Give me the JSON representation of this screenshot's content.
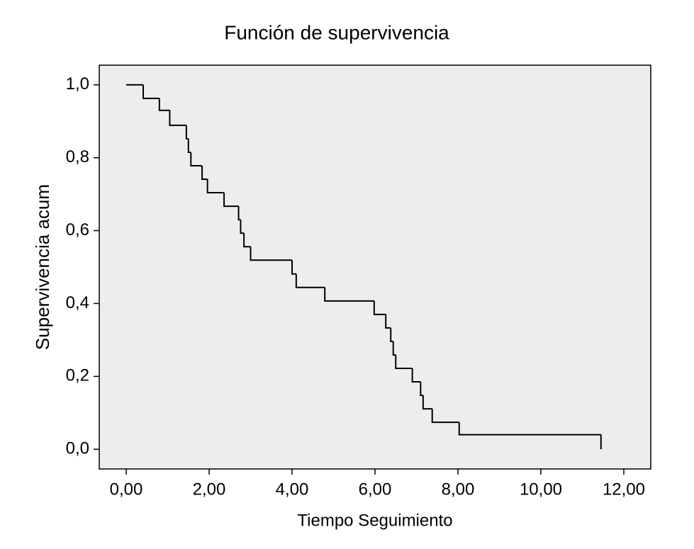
{
  "chart_data": {
    "type": "line",
    "drawstyle": "steps-post",
    "title": "Función de supervivencia",
    "x_label": "Tiempo Seguimiento",
    "y_label": "Supervivencia acum",
    "x": [
      0,
      0.41,
      0.8,
      1.05,
      1.45,
      1.5,
      1.56,
      1.83,
      1.96,
      2.36,
      2.71,
      2.76,
      2.84,
      3.0,
      4.0,
      4.1,
      4.79,
      5.98,
      6.26,
      6.38,
      6.44,
      6.5,
      6.9,
      7.1,
      7.16,
      7.38,
      8.03,
      11.45
    ],
    "values": [
      1.0,
      0.963,
      0.93,
      0.889,
      0.852,
      0.815,
      0.778,
      0.741,
      0.704,
      0.667,
      0.63,
      0.593,
      0.556,
      0.519,
      0.481,
      0.444,
      0.407,
      0.37,
      0.333,
      0.296,
      0.259,
      0.222,
      0.185,
      0.148,
      0.111,
      0.074,
      0.04,
      0.0
    ],
    "color": "#000000",
    "background": "#ededef",
    "xlim": [
      -0.65,
      12.65
    ],
    "ylim": [
      -0.054,
      1.054
    ],
    "xticks": [
      {
        "value": 0,
        "label": "0,00"
      },
      {
        "value": 2,
        "label": "2,00"
      },
      {
        "value": 4,
        "label": "4,00"
      },
      {
        "value": 6,
        "label": "6,00"
      },
      {
        "value": 8,
        "label": "8,00"
      },
      {
        "value": 10,
        "label": "10,00"
      },
      {
        "value": 12,
        "label": "12,00"
      }
    ],
    "yticks": [
      {
        "value": 0,
        "label": "0,0"
      },
      {
        "value": 0.2,
        "label": "0,2"
      },
      {
        "value": 0.4,
        "label": "0,4"
      },
      {
        "value": 0.6,
        "label": "0,6"
      },
      {
        "value": 0.8,
        "label": "0,8"
      },
      {
        "value": 1.0,
        "label": "1,0"
      }
    ],
    "grid": false
  }
}
